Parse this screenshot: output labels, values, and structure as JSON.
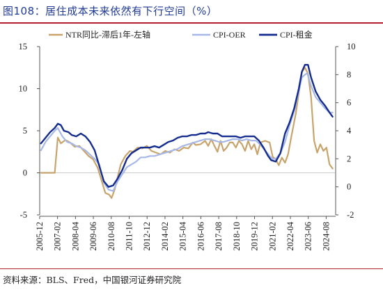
{
  "header": {
    "title": "图108：居住成本未来依然有下行空间（%）"
  },
  "footer": {
    "source": "资料来源：BLS、Fred，中国银河证券研究院"
  },
  "colors": {
    "ntr": "#c8a46c",
    "oer": "#a6b8e8",
    "rent": "#142c8e",
    "accent": "#b11f2e"
  },
  "chart_data": {
    "type": "line",
    "left_axis": {
      "ylim": [
        -5,
        15
      ],
      "ticks": [
        "-5",
        "0",
        "5",
        "10",
        "15"
      ]
    },
    "right_axis": {
      "ylim": [
        -2,
        10
      ],
      "ticks": [
        "-2",
        "0",
        "2",
        "4",
        "6",
        "8",
        "10"
      ]
    },
    "x_ticks": [
      "2005-12",
      "2007-02",
      "2008-04",
      "2009-06",
      "2010-08",
      "2011-10",
      "2012-12",
      "2014-02",
      "2015-04",
      "2016-06",
      "2017-08",
      "2018-10",
      "2019-12",
      "2021-02",
      "2022-04",
      "2023-06",
      "2024-08"
    ],
    "x_range": [
      2005.92,
      2025.2
    ],
    "series": [
      {
        "name": "NTR同比-滞后1年-左轴",
        "axis": "left",
        "points": [
          [
            2006.0,
            0.0
          ],
          [
            2006.5,
            0.0
          ],
          [
            2006.9,
            0.0
          ],
          [
            2007.1,
            4.2
          ],
          [
            2007.3,
            3.5
          ],
          [
            2007.6,
            3.9
          ],
          [
            2007.9,
            3.6
          ],
          [
            2008.2,
            3.1
          ],
          [
            2008.5,
            3.2
          ],
          [
            2008.8,
            2.6
          ],
          [
            2009.1,
            2.0
          ],
          [
            2009.4,
            1.6
          ],
          [
            2009.7,
            0.6
          ],
          [
            2010.0,
            -1.2
          ],
          [
            2010.2,
            -2.4
          ],
          [
            2010.45,
            -2.6
          ],
          [
            2010.6,
            -3.0
          ],
          [
            2010.8,
            -2.0
          ],
          [
            2011.0,
            -0.5
          ],
          [
            2011.2,
            1.0
          ],
          [
            2011.5,
            2.0
          ],
          [
            2011.8,
            2.6
          ],
          [
            2012.0,
            2.5
          ],
          [
            2012.3,
            3.0
          ],
          [
            2012.6,
            2.9
          ],
          [
            2012.9,
            3.2
          ],
          [
            2013.2,
            2.6
          ],
          [
            2013.5,
            2.4
          ],
          [
            2013.8,
            2.2
          ],
          [
            2014.1,
            2.6
          ],
          [
            2014.4,
            2.4
          ],
          [
            2014.7,
            2.8
          ],
          [
            2015.0,
            2.6
          ],
          [
            2015.3,
            3.0
          ],
          [
            2015.6,
            2.9
          ],
          [
            2015.9,
            3.6
          ],
          [
            2016.1,
            3.3
          ],
          [
            2016.4,
            3.4
          ],
          [
            2016.7,
            3.8
          ],
          [
            2016.9,
            3.2
          ],
          [
            2017.1,
            4.0
          ],
          [
            2017.3,
            3.2
          ],
          [
            2017.5,
            2.5
          ],
          [
            2017.7,
            3.8
          ],
          [
            2017.9,
            2.6
          ],
          [
            2018.1,
            3.0
          ],
          [
            2018.3,
            3.6
          ],
          [
            2018.5,
            3.6
          ],
          [
            2018.7,
            3.0
          ],
          [
            2018.9,
            3.8
          ],
          [
            2019.1,
            3.4
          ],
          [
            2019.3,
            2.6
          ],
          [
            2019.5,
            3.8
          ],
          [
            2019.7,
            2.8
          ],
          [
            2019.9,
            3.4
          ],
          [
            2020.1,
            2.2
          ],
          [
            2020.3,
            3.6
          ],
          [
            2020.6,
            3.8
          ],
          [
            2020.9,
            3.6
          ],
          [
            2021.1,
            1.9
          ],
          [
            2021.3,
            1.6
          ],
          [
            2021.5,
            0.9
          ],
          [
            2021.7,
            1.8
          ],
          [
            2021.9,
            1.2
          ],
          [
            2022.1,
            2.2
          ],
          [
            2022.3,
            4.2
          ],
          [
            2022.6,
            7.0
          ],
          [
            2022.8,
            9.5
          ],
          [
            2023.0,
            12.0
          ],
          [
            2023.2,
            12.5
          ],
          [
            2023.4,
            11.8
          ],
          [
            2023.6,
            9.0
          ],
          [
            2023.8,
            3.8
          ],
          [
            2024.0,
            2.4
          ],
          [
            2024.2,
            3.4
          ],
          [
            2024.4,
            2.6
          ],
          [
            2024.6,
            3.0
          ],
          [
            2024.8,
            1.0
          ],
          [
            2025.0,
            0.5
          ]
        ]
      },
      {
        "name": "CPI-OER",
        "axis": "right",
        "points": [
          [
            2006.0,
            2.6
          ],
          [
            2006.3,
            3.2
          ],
          [
            2006.6,
            3.6
          ],
          [
            2006.9,
            4.0
          ],
          [
            2007.1,
            4.2
          ],
          [
            2007.4,
            3.6
          ],
          [
            2007.7,
            3.2
          ],
          [
            2008.0,
            3.1
          ],
          [
            2008.3,
            2.9
          ],
          [
            2008.6,
            2.8
          ],
          [
            2008.9,
            2.6
          ],
          [
            2009.2,
            2.3
          ],
          [
            2009.5,
            2.0
          ],
          [
            2009.8,
            1.6
          ],
          [
            2010.1,
            0.3
          ],
          [
            2010.4,
            -0.2
          ],
          [
            2010.7,
            -0.3
          ],
          [
            2011.0,
            0.4
          ],
          [
            2011.3,
            0.9
          ],
          [
            2011.6,
            1.4
          ],
          [
            2011.9,
            1.6
          ],
          [
            2012.2,
            1.8
          ],
          [
            2012.5,
            2.1
          ],
          [
            2012.8,
            2.1
          ],
          [
            2013.1,
            2.2
          ],
          [
            2013.4,
            2.2
          ],
          [
            2013.7,
            2.3
          ],
          [
            2014.0,
            2.4
          ],
          [
            2014.3,
            2.5
          ],
          [
            2014.6,
            2.6
          ],
          [
            2014.9,
            2.7
          ],
          [
            2015.2,
            2.9
          ],
          [
            2015.5,
            3.0
          ],
          [
            2015.8,
            3.1
          ],
          [
            2016.1,
            3.2
          ],
          [
            2016.4,
            3.3
          ],
          [
            2016.7,
            3.4
          ],
          [
            2017.0,
            3.4
          ],
          [
            2017.3,
            3.3
          ],
          [
            2017.6,
            3.2
          ],
          [
            2017.9,
            3.2
          ],
          [
            2018.2,
            3.3
          ],
          [
            2018.5,
            3.4
          ],
          [
            2018.8,
            3.4
          ],
          [
            2019.1,
            3.3
          ],
          [
            2019.4,
            3.4
          ],
          [
            2019.7,
            3.3
          ],
          [
            2020.0,
            3.3
          ],
          [
            2020.3,
            3.0
          ],
          [
            2020.6,
            2.6
          ],
          [
            2020.9,
            2.2
          ],
          [
            2021.1,
            2.0
          ],
          [
            2021.3,
            2.0
          ],
          [
            2021.6,
            2.4
          ],
          [
            2021.9,
            3.2
          ],
          [
            2022.2,
            4.4
          ],
          [
            2022.5,
            5.4
          ],
          [
            2022.8,
            6.8
          ],
          [
            2023.0,
            7.8
          ],
          [
            2023.2,
            8.0
          ],
          [
            2023.35,
            8.1
          ],
          [
            2023.6,
            7.2
          ],
          [
            2023.9,
            6.4
          ],
          [
            2024.2,
            6.0
          ],
          [
            2024.5,
            5.6
          ],
          [
            2024.8,
            5.3
          ],
          [
            2025.0,
            5.3
          ]
        ]
      },
      {
        "name": "CPI-租金",
        "axis": "right",
        "points": [
          [
            2006.0,
            3.1
          ],
          [
            2006.3,
            3.5
          ],
          [
            2006.6,
            3.9
          ],
          [
            2006.9,
            4.2
          ],
          [
            2007.1,
            4.5
          ],
          [
            2007.3,
            4.4
          ],
          [
            2007.5,
            4.0
          ],
          [
            2007.8,
            3.9
          ],
          [
            2008.0,
            3.7
          ],
          [
            2008.3,
            3.6
          ],
          [
            2008.6,
            3.8
          ],
          [
            2008.9,
            3.6
          ],
          [
            2009.2,
            3.2
          ],
          [
            2009.5,
            2.6
          ],
          [
            2009.8,
            1.5
          ],
          [
            2010.1,
            0.4
          ],
          [
            2010.4,
            0.0
          ],
          [
            2010.7,
            0.1
          ],
          [
            2011.0,
            0.6
          ],
          [
            2011.3,
            1.2
          ],
          [
            2011.6,
            2.0
          ],
          [
            2011.9,
            2.4
          ],
          [
            2012.2,
            2.6
          ],
          [
            2012.5,
            2.8
          ],
          [
            2012.8,
            2.8
          ],
          [
            2013.1,
            2.8
          ],
          [
            2013.4,
            2.9
          ],
          [
            2013.7,
            2.8
          ],
          [
            2014.0,
            3.0
          ],
          [
            2014.3,
            3.2
          ],
          [
            2014.6,
            3.3
          ],
          [
            2014.9,
            3.5
          ],
          [
            2015.2,
            3.6
          ],
          [
            2015.5,
            3.6
          ],
          [
            2015.8,
            3.7
          ],
          [
            2016.1,
            3.7
          ],
          [
            2016.4,
            3.8
          ],
          [
            2016.7,
            3.8
          ],
          [
            2016.9,
            3.9
          ],
          [
            2017.2,
            3.8
          ],
          [
            2017.5,
            3.8
          ],
          [
            2017.8,
            3.6
          ],
          [
            2018.1,
            3.6
          ],
          [
            2018.4,
            3.6
          ],
          [
            2018.7,
            3.6
          ],
          [
            2019.0,
            3.5
          ],
          [
            2019.3,
            3.6
          ],
          [
            2019.6,
            3.6
          ],
          [
            2019.9,
            3.6
          ],
          [
            2020.2,
            3.3
          ],
          [
            2020.5,
            2.8
          ],
          [
            2020.8,
            2.2
          ],
          [
            2021.0,
            1.9
          ],
          [
            2021.3,
            1.8
          ],
          [
            2021.6,
            2.4
          ],
          [
            2021.9,
            3.8
          ],
          [
            2022.2,
            4.6
          ],
          [
            2022.5,
            5.6
          ],
          [
            2022.8,
            7.0
          ],
          [
            2023.0,
            8.2
          ],
          [
            2023.2,
            8.7
          ],
          [
            2023.4,
            8.7
          ],
          [
            2023.6,
            7.8
          ],
          [
            2023.9,
            6.8
          ],
          [
            2024.2,
            6.2
          ],
          [
            2024.5,
            5.8
          ],
          [
            2024.8,
            5.3
          ],
          [
            2025.0,
            5.0
          ]
        ]
      }
    ]
  }
}
